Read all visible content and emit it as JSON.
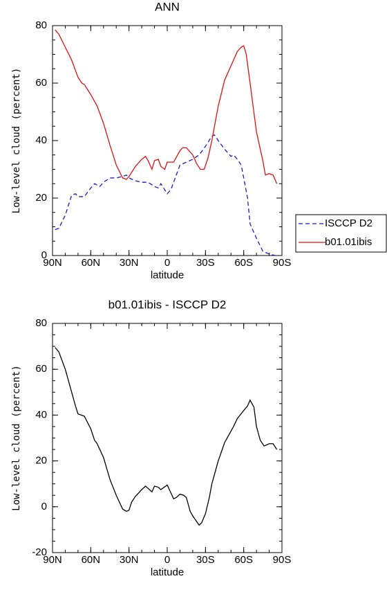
{
  "chart_data": [
    {
      "type": "line",
      "title": "ANN",
      "xlabel": "latitude",
      "ylabel": "Low-level cloud (percent)",
      "xlim": [
        90,
        -90
      ],
      "xticks": [
        {
          "value": 90,
          "label": "90N"
        },
        {
          "value": 60,
          "label": "60N"
        },
        {
          "value": 30,
          "label": "30N"
        },
        0,
        {
          "value": -30,
          "label": "30S"
        },
        {
          "value": -60,
          "label": "60S"
        },
        {
          "value": -90,
          "label": "90S"
        }
      ],
      "ylim": [
        0,
        80
      ],
      "yticks": [
        0,
        20,
        40,
        60,
        80
      ],
      "legend": "right",
      "series": [
        {
          "name": "ISCCP D2",
          "color": "#1a1acc",
          "dash": true,
          "x": [
            88,
            85,
            80,
            75,
            72,
            70,
            65,
            60,
            57,
            53,
            50,
            45,
            40,
            35,
            32,
            30,
            25,
            20,
            15,
            10,
            7,
            5,
            0,
            -3,
            -5,
            -10,
            -15,
            -20,
            -25,
            -30,
            -35,
            -37,
            -40,
            -45,
            -50,
            -52,
            -55,
            -58,
            -60,
            -63,
            -65,
            -70,
            -75,
            -80,
            -85,
            -88
          ],
          "values": [
            9,
            9.5,
            14,
            21,
            21.5,
            20.5,
            20.5,
            23.5,
            25,
            24,
            25.5,
            27,
            27,
            27.5,
            28,
            27,
            26,
            25.5,
            25.5,
            24,
            23.5,
            25,
            21.5,
            23,
            25.5,
            31.5,
            32.5,
            33.5,
            35,
            38,
            41.5,
            42,
            40,
            37,
            34.5,
            35,
            33.5,
            31.5,
            27,
            20,
            11,
            6,
            1.5,
            0.5,
            0,
            0
          ]
        },
        {
          "name": "b01.01ibis",
          "color": "#e01010",
          "dash": false,
          "x": [
            88,
            85,
            80,
            75,
            70,
            67,
            65,
            60,
            55,
            50,
            45,
            40,
            35,
            32,
            30,
            25,
            20,
            17,
            15,
            12,
            10,
            7,
            5,
            2,
            0,
            -5,
            -10,
            -12,
            -15,
            -20,
            -23,
            -26,
            -29,
            -32,
            -35,
            -40,
            -45,
            -50,
            -55,
            -58,
            -60,
            -62,
            -65,
            -70,
            -75,
            -77,
            -80,
            -83,
            -86
          ],
          "values": [
            78.5,
            77,
            72.5,
            68,
            62,
            60,
            59.5,
            56,
            52,
            46,
            38.5,
            31.5,
            27,
            26.5,
            27.5,
            31,
            33.5,
            34.5,
            33,
            30,
            33,
            33.5,
            31,
            30,
            32.5,
            32.5,
            36.5,
            37.5,
            37.5,
            35,
            32,
            30,
            30,
            34,
            40,
            52,
            61,
            66,
            71,
            72.5,
            73,
            70,
            60,
            43,
            33,
            28,
            28.5,
            28,
            25
          ]
        }
      ]
    },
    {
      "type": "line",
      "title": "b01.01ibis - ISCCP D2",
      "xlabel": "latitude",
      "ylabel": "Low-level cloud (percent)",
      "xlim": [
        90,
        -90
      ],
      "xticks": [
        {
          "value": 90,
          "label": "90N"
        },
        {
          "value": 60,
          "label": "60N"
        },
        {
          "value": 30,
          "label": "30N"
        },
        0,
        {
          "value": -30,
          "label": "30S"
        },
        {
          "value": -60,
          "label": "60S"
        },
        {
          "value": -90,
          "label": "90S"
        }
      ],
      "ylim": [
        -20,
        80
      ],
      "yticks": [
        -20,
        0,
        20,
        40,
        60,
        80
      ],
      "series": [
        {
          "color": "#000000",
          "dash": false,
          "x": [
            88,
            85,
            80,
            75,
            72,
            70,
            65,
            60,
            57,
            55,
            50,
            45,
            40,
            35,
            32,
            30,
            28,
            25,
            20,
            17,
            15,
            12,
            10,
            7,
            5,
            0,
            -5,
            -7,
            -10,
            -13,
            -15,
            -18,
            -20,
            -25,
            -27,
            -30,
            -33,
            -35,
            -40,
            -45,
            -50,
            -52,
            -55,
            -60,
            -63,
            -65,
            -68,
            -70,
            -73,
            -76,
            -80,
            -83,
            -86
          ],
          "values": [
            69.5,
            67.5,
            60,
            50,
            44,
            40.5,
            39.5,
            34,
            29,
            27.5,
            21.5,
            12,
            5,
            -1,
            -2,
            -1.5,
            2,
            4.5,
            7.5,
            9,
            8,
            6.5,
            9,
            8.5,
            7.5,
            9.5,
            3.5,
            4,
            5.5,
            5,
            4,
            -2,
            -4,
            -8,
            -7,
            -3,
            4,
            10,
            20,
            28,
            33,
            35,
            38.5,
            42,
            44,
            46.5,
            43.5,
            35,
            29,
            26.5,
            27.5,
            27.5,
            25
          ]
        }
      ]
    }
  ]
}
